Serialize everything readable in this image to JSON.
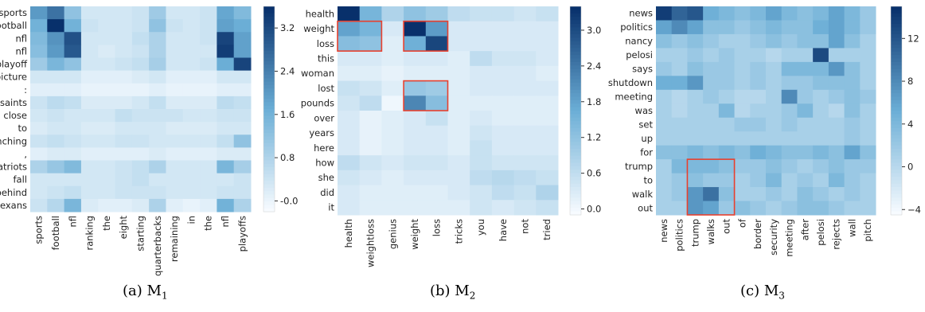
{
  "colormap": {
    "low": "#f7fbff",
    "mid": "#6baed6",
    "high": "#08306b"
  },
  "highlight_color": "#e8402e",
  "chart_data": [
    {
      "type": "heatmap",
      "caption": "(a) M",
      "caption_sub": "1",
      "rows": [
        "sports",
        "football",
        "nfl",
        "nfl",
        "playoff",
        "picture",
        ":",
        "saints",
        "close",
        "to",
        "clinching",
        ",",
        "patriots",
        "fall",
        "behind",
        "texans"
      ],
      "cols": [
        "sports",
        "football",
        "nfl",
        "ranking",
        "the",
        "eight",
        "starting",
        "quarterbacks",
        "remaining",
        "in",
        "the",
        "nfl",
        "playoffs"
      ],
      "values": [
        [
          2.0,
          2.6,
          1.2,
          0.3,
          0.3,
          0.3,
          0.4,
          1.0,
          0.3,
          0.3,
          0.4,
          1.8,
          1.4
        ],
        [
          1.6,
          3.6,
          1.6,
          0.4,
          0.3,
          0.3,
          0.4,
          1.2,
          0.4,
          0.3,
          0.4,
          1.9,
          1.7
        ],
        [
          1.4,
          2.1,
          3.1,
          0.3,
          0.3,
          0.3,
          0.5,
          0.8,
          0.3,
          0.3,
          0.4,
          3.3,
          1.9
        ],
        [
          1.3,
          2.0,
          3.0,
          0.3,
          0.2,
          0.3,
          0.4,
          0.8,
          0.3,
          0.3,
          0.3,
          3.4,
          1.9
        ],
        [
          1.0,
          1.5,
          1.2,
          0.3,
          0.3,
          0.4,
          0.5,
          0.9,
          0.3,
          0.3,
          0.4,
          1.7,
          3.3
        ],
        [
          0.3,
          0.3,
          0.3,
          0.1,
          0.1,
          0.1,
          0.2,
          0.3,
          0.1,
          0.1,
          0.1,
          0.3,
          0.3
        ],
        [
          0.1,
          0.1,
          0.1,
          0.0,
          0.0,
          0.0,
          0.0,
          0.1,
          0.0,
          0.0,
          0.0,
          0.1,
          0.1
        ],
        [
          0.4,
          0.6,
          0.5,
          0.2,
          0.2,
          0.2,
          0.3,
          0.5,
          0.2,
          0.2,
          0.2,
          0.6,
          0.5
        ],
        [
          0.3,
          0.4,
          0.3,
          0.3,
          0.3,
          0.5,
          0.4,
          0.4,
          0.4,
          0.3,
          0.3,
          0.4,
          0.4
        ],
        [
          0.2,
          0.3,
          0.3,
          0.2,
          0.2,
          0.3,
          0.3,
          0.3,
          0.2,
          0.2,
          0.2,
          0.3,
          0.3
        ],
        [
          0.4,
          0.5,
          0.4,
          0.3,
          0.3,
          0.4,
          0.4,
          0.3,
          0.3,
          0.3,
          0.3,
          0.5,
          1.2
        ],
        [
          0.1,
          0.2,
          0.2,
          0.1,
          0.1,
          0.1,
          0.1,
          0.2,
          0.1,
          0.1,
          0.1,
          0.2,
          0.2
        ],
        [
          0.8,
          1.1,
          1.4,
          0.3,
          0.3,
          0.4,
          0.5,
          0.8,
          0.3,
          0.3,
          0.3,
          1.5,
          0.9
        ],
        [
          0.3,
          0.3,
          0.3,
          0.3,
          0.3,
          0.4,
          0.5,
          0.3,
          0.3,
          0.3,
          0.3,
          0.3,
          0.4
        ],
        [
          0.3,
          0.4,
          0.5,
          0.3,
          0.3,
          0.4,
          0.4,
          0.4,
          0.3,
          0.3,
          0.3,
          0.4,
          0.4
        ],
        [
          0.4,
          0.7,
          1.5,
          0.2,
          0.1,
          0.1,
          0.2,
          0.8,
          0.1,
          0.0,
          0.1,
          1.6,
          0.8
        ]
      ],
      "vmin": -0.2,
      "vmax": 3.6,
      "colorbar_ticks": [
        3.2,
        2.4,
        1.6,
        0.8,
        -0.0
      ],
      "colorbar_tick_labels": [
        "3.2",
        "2.4",
        "1.6",
        "0.8",
        "-0.0"
      ],
      "highlights": []
    },
    {
      "type": "heatmap",
      "caption": "(b) M",
      "caption_sub": "2",
      "rows": [
        "health",
        "weight",
        "loss",
        "this",
        "woman",
        "lost",
        "pounds",
        "over",
        "years",
        "here",
        "how",
        "she",
        "did",
        "it"
      ],
      "cols": [
        "health",
        "weightloss",
        "genius",
        "weight",
        "loss",
        "tricks",
        "you",
        "have",
        "not",
        "tried"
      ],
      "values": [
        [
          3.5,
          1.5,
          0.8,
          1.2,
          1.0,
          0.6,
          0.5,
          0.5,
          0.4,
          0.5
        ],
        [
          1.8,
          1.5,
          0.3,
          3.4,
          1.9,
          0.3,
          0.3,
          0.3,
          0.3,
          0.3
        ],
        [
          1.3,
          1.2,
          0.2,
          1.6,
          3.1,
          0.3,
          0.3,
          0.3,
          0.3,
          0.3
        ],
        [
          0.3,
          0.3,
          0.2,
          0.3,
          0.3,
          0.2,
          0.6,
          0.4,
          0.4,
          0.3
        ],
        [
          0.2,
          0.2,
          0.1,
          0.2,
          0.2,
          0.2,
          0.3,
          0.3,
          0.3,
          0.2
        ],
        [
          0.5,
          0.4,
          0.2,
          1.1,
          1.0,
          0.2,
          0.3,
          0.3,
          0.3,
          0.3
        ],
        [
          0.4,
          0.6,
          0.0,
          2.2,
          1.3,
          0.2,
          0.2,
          0.2,
          0.2,
          0.2
        ],
        [
          0.3,
          0.1,
          0.2,
          0.3,
          0.5,
          0.2,
          0.3,
          0.2,
          0.2,
          0.2
        ],
        [
          0.3,
          0.1,
          0.2,
          0.3,
          0.3,
          0.2,
          0.4,
          0.3,
          0.3,
          0.3
        ],
        [
          0.3,
          0.1,
          0.2,
          0.3,
          0.3,
          0.2,
          0.5,
          0.3,
          0.3,
          0.3
        ],
        [
          0.6,
          0.4,
          0.3,
          0.4,
          0.4,
          0.3,
          0.5,
          0.4,
          0.4,
          0.4
        ],
        [
          0.4,
          0.3,
          0.2,
          0.3,
          0.3,
          0.3,
          0.6,
          0.7,
          0.6,
          0.5
        ],
        [
          0.3,
          0.2,
          0.2,
          0.2,
          0.2,
          0.3,
          0.4,
          0.6,
          0.5,
          0.8
        ],
        [
          0.3,
          0.2,
          0.2,
          0.2,
          0.2,
          0.2,
          0.4,
          0.3,
          0.4,
          0.5
        ]
      ],
      "vmin": -0.1,
      "vmax": 3.4,
      "colorbar_ticks": [
        3.0,
        2.4,
        1.8,
        1.2,
        0.6,
        0.0
      ],
      "colorbar_tick_labels": [
        "3.0",
        "2.4",
        "1.8",
        "1.2",
        "0.6",
        "0.0"
      ],
      "highlights": [
        {
          "row": 1,
          "col": 0,
          "rows": 2,
          "cols": 2
        },
        {
          "row": 1,
          "col": 3,
          "rows": 2,
          "cols": 2
        },
        {
          "row": 5,
          "col": 3,
          "rows": 2,
          "cols": 2
        }
      ]
    },
    {
      "type": "heatmap",
      "caption": "(c) M",
      "caption_sub": "3",
      "rows": [
        "news",
        "politics",
        "nancy",
        "pelosi",
        "says",
        "shutdown",
        "meeting",
        "was",
        "set",
        "up",
        "for",
        "trump",
        "to",
        "walk",
        "out"
      ],
      "cols": [
        "news",
        "politics",
        "trump",
        "walks",
        "out",
        "of",
        "border",
        "security",
        "meeting",
        "after",
        "pelosi",
        "rejects",
        "wall",
        "pitch"
      ],
      "values": [
        [
          14,
          11,
          12,
          5,
          4,
          3,
          4,
          6,
          4,
          3,
          4,
          6,
          4,
          2
        ],
        [
          6,
          8,
          6,
          3,
          3,
          2,
          3,
          4,
          3,
          3,
          5,
          6,
          4,
          2
        ],
        [
          3,
          2,
          3,
          2,
          1,
          1,
          2,
          3,
          2,
          3,
          3,
          6,
          3,
          1
        ],
        [
          1,
          1,
          2,
          1,
          2,
          1,
          1,
          0,
          1,
          1,
          13,
          1,
          1,
          1
        ],
        [
          2,
          1,
          3,
          2,
          2,
          1,
          2,
          1,
          4,
          4,
          4,
          7,
          3,
          1
        ],
        [
          5,
          5,
          7,
          2,
          2,
          1,
          2,
          1,
          2,
          2,
          3,
          3,
          3,
          1
        ],
        [
          1,
          0,
          1,
          2,
          1,
          0,
          0,
          1,
          8,
          2,
          1,
          2,
          3,
          2
        ],
        [
          1,
          0,
          1,
          1,
          4,
          0,
          1,
          1,
          2,
          4,
          1,
          0,
          3,
          1
        ],
        [
          1,
          1,
          1,
          1,
          1,
          2,
          2,
          1,
          2,
          1,
          1,
          1,
          2,
          1
        ],
        [
          1,
          1,
          1,
          1,
          1,
          1,
          1,
          1,
          1,
          1,
          1,
          1,
          2,
          1
        ],
        [
          3,
          3,
          4,
          3,
          4,
          3,
          5,
          4,
          3,
          3,
          4,
          3,
          6,
          3
        ],
        [
          1,
          4,
          4,
          4,
          3,
          2,
          2,
          3,
          2,
          1,
          2,
          3,
          2,
          2
        ],
        [
          1,
          2,
          3,
          2,
          2,
          1,
          2,
          4,
          1,
          2,
          1,
          4,
          2,
          1
        ],
        [
          1,
          2,
          7,
          10,
          3,
          1,
          1,
          2,
          1,
          3,
          2,
          1,
          2,
          1
        ],
        [
          1,
          1,
          7,
          6,
          2,
          3,
          2,
          1,
          2,
          3,
          3,
          2,
          1,
          1
        ]
      ],
      "vmin": -4.5,
      "vmax": 15,
      "colorbar_ticks": [
        12,
        8,
        4,
        0,
        -4
      ],
      "colorbar_tick_labels": [
        "12",
        "8",
        "4",
        "0",
        "−4"
      ],
      "highlights": [
        {
          "row": 11,
          "col": 2,
          "rows": 4,
          "cols": 3
        }
      ]
    }
  ]
}
